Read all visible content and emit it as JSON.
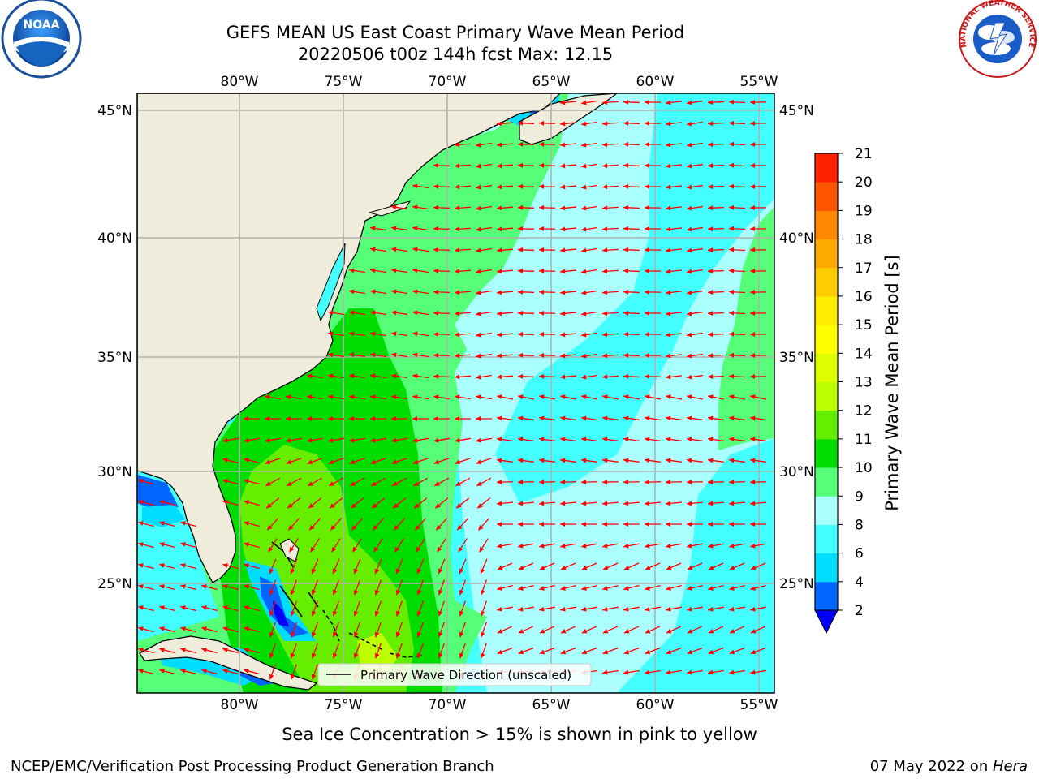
{
  "header": {
    "title_line1": "GEFS MEAN US East Coast Primary Wave Mean Period",
    "title_line2": "20220506 t00z 144h fcst   Max: 12.15"
  },
  "logos": {
    "noaa": "NOAA",
    "nws": "NATIONAL WEATHER SERVICE"
  },
  "map": {
    "lon_labels": [
      "80°W",
      "75°W",
      "70°W",
      "65°W",
      "60°W",
      "55°W"
    ],
    "lat_labels": [
      "45°N",
      "40°N",
      "35°N",
      "30°N",
      "25°N"
    ],
    "legend_label": "Primary Wave Direction (unscaled)",
    "land_color": "#efecdc",
    "arrow_color": "#ff0000"
  },
  "colorbar": {
    "label": "Primary Wave Mean Period [s]",
    "ticks": [
      "2",
      "4",
      "6",
      "8",
      "9",
      "10",
      "11",
      "12",
      "13",
      "14",
      "15",
      "16",
      "17",
      "18",
      "19",
      "20",
      "21"
    ],
    "colors": [
      "#0066ff",
      "#00ddff",
      "#44ffff",
      "#aaffff",
      "#55ff77",
      "#00dd00",
      "#66ee00",
      "#bbff00",
      "#ddff00",
      "#ffff00",
      "#ffee00",
      "#ffcc00",
      "#ffaa00",
      "#ff8800",
      "#ff5500",
      "#ff2200",
      "#ff0000"
    ],
    "under_color": "#0000ff"
  },
  "footer": {
    "note": "Sea Ice Concentration > 15% is shown in pink to yellow",
    "credit": "NCEP/EMC/Verification Post Processing Product Generation Branch",
    "date": "07 May 2022 on ",
    "machine": "Hera"
  }
}
